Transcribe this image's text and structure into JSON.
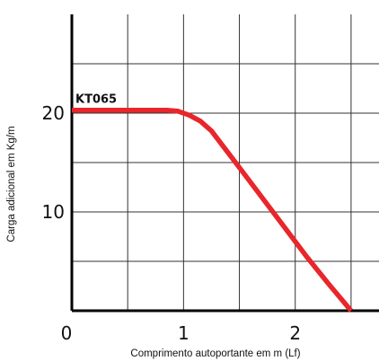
{
  "chart_data": {
    "type": "line",
    "title": "",
    "xlabel": "Comprimento autoportante em m (Lf)",
    "ylabel": "Carga adicional em Kg/m",
    "xlim": [
      0,
      2.75
    ],
    "ylim": [
      0,
      30
    ],
    "x_ticks": [
      0,
      0.5,
      1,
      1.5,
      2,
      2.5
    ],
    "x_tick_labels": [
      "0",
      "",
      "1",
      "",
      "2",
      ""
    ],
    "y_ticks": [
      5,
      10,
      15,
      20,
      25
    ],
    "y_tick_labels": [
      "",
      "10",
      "",
      "20",
      ""
    ],
    "grid": true,
    "series": [
      {
        "name": "KT065",
        "color": "#e8262b",
        "x": [
          0,
          0.5,
          0.85,
          0.95,
          1.05,
          1.15,
          1.25,
          1.5,
          1.8,
          2.1,
          2.3,
          2.5
        ],
        "y": [
          20.3,
          20.3,
          20.3,
          20.2,
          19.8,
          19.2,
          18.2,
          14.5,
          10.0,
          5.5,
          2.7,
          0
        ]
      }
    ]
  }
}
